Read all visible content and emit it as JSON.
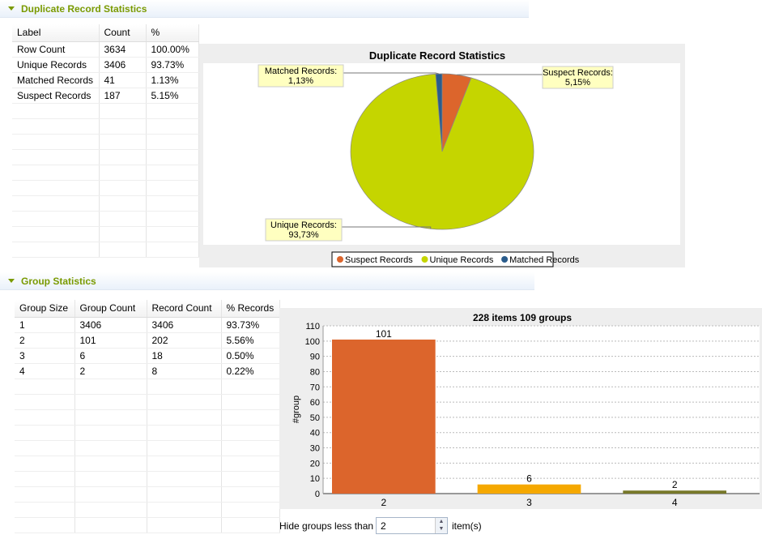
{
  "dup_section": {
    "title": "Duplicate Record Statistics",
    "columns": [
      "Label",
      "Count",
      "%"
    ],
    "rows": [
      [
        "Row Count",
        "3634",
        "100.00%"
      ],
      [
        "Unique Records",
        "3406",
        "93.73%"
      ],
      [
        "Matched Records",
        "41",
        "1.13%"
      ],
      [
        "Suspect Records",
        "187",
        "5.15%"
      ]
    ]
  },
  "group_section": {
    "title": "Group Statistics",
    "columns": [
      "Group Size",
      "Group Count",
      "Record Count",
      "% Records"
    ],
    "rows": [
      [
        "1",
        "3406",
        "3406",
        "93.73%"
      ],
      [
        "2",
        "101",
        "202",
        "5.56%"
      ],
      [
        "3",
        "6",
        "18",
        "0.50%"
      ],
      [
        "4",
        "2",
        "8",
        "0.22%"
      ]
    ],
    "hide_label": "Hide groups less than",
    "hide_value": "2",
    "hide_unit": "item(s)"
  },
  "chart_data": [
    {
      "type": "pie",
      "title": "Duplicate Record Statistics",
      "slices": [
        {
          "name": "Suspect Records",
          "value": 5.15,
          "label": "Suspect Records:",
          "pct": "5,15%",
          "color": "#dc652c"
        },
        {
          "name": "Unique Records",
          "value": 93.73,
          "label": "Unique Records:",
          "pct": "93,73%",
          "color": "#c5d500"
        },
        {
          "name": "Matched Records",
          "value": 1.13,
          "label": "Matched Records:",
          "pct": "1,13%",
          "color": "#2a5c8c"
        }
      ],
      "legend": "bottom"
    },
    {
      "type": "bar",
      "title": "228 items 109 groups",
      "ylabel": "#group",
      "xlabel": "",
      "categories": [
        "2",
        "3",
        "4"
      ],
      "values": [
        101,
        6,
        2
      ],
      "colors": [
        "#dc652c",
        "#f5a800",
        "#77782a"
      ],
      "ylim": [
        0,
        110
      ],
      "yticks": [
        0,
        10,
        20,
        30,
        40,
        50,
        60,
        70,
        80,
        90,
        100,
        110
      ],
      "grid": true
    }
  ]
}
